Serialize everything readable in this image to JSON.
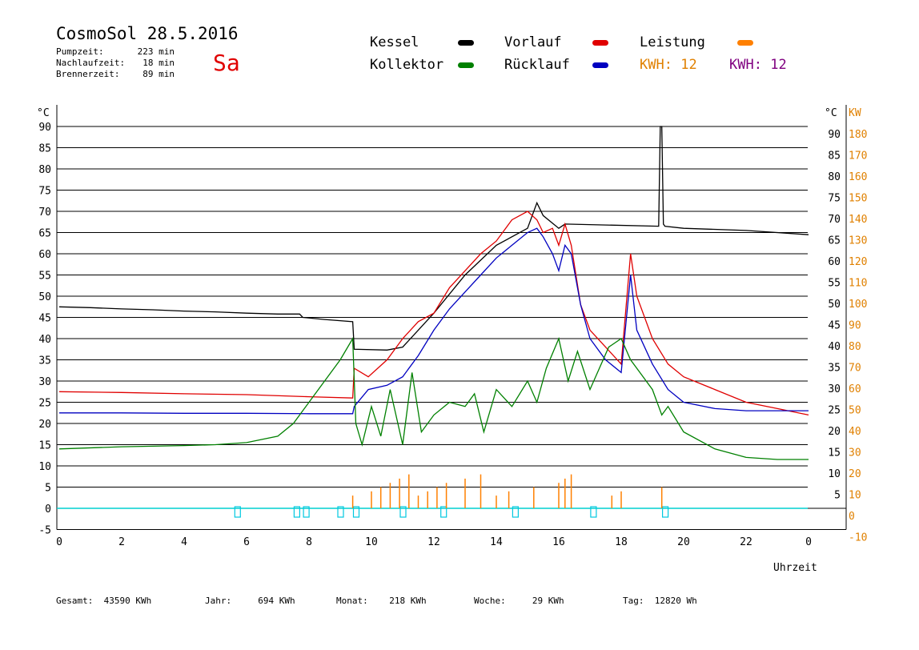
{
  "header": {
    "title": "CosmoSol 28.5.2016",
    "day": "Sa",
    "info": [
      {
        "label": "Pumpzeit:",
        "value": "223 min"
      },
      {
        "label": "Nachlaufzeit:",
        "value": "18 min"
      },
      {
        "label": "Brennerzeit:",
        "value": "89 min"
      }
    ]
  },
  "legend": {
    "kessel": {
      "label": "Kessel",
      "color": "#000000"
    },
    "vorlauf": {
      "label": "Vorlauf",
      "color": "#e00000"
    },
    "leistung": {
      "label": "Leistung",
      "color": "#ff8000"
    },
    "kollektor": {
      "label": "Kollektor",
      "color": "#008000"
    },
    "ruecklauf": {
      "label": "Rücklauf",
      "color": "#0000c0"
    },
    "kwh_orange": {
      "label": "KWH:",
      "value": "12",
      "color": "#e08000"
    },
    "kwh_purple": {
      "label": "KWH:",
      "value": "12",
      "color": "#800080"
    }
  },
  "footer": {
    "gesamt": {
      "label": "Gesamt:",
      "value": "43590 KWh"
    },
    "jahr": {
      "label": "Jahr:",
      "value": "694 KWh"
    },
    "monat": {
      "label": "Monat:",
      "value": "218 KWh"
    },
    "woche": {
      "label": "Woche:",
      "value": "29 KWh"
    },
    "tag": {
      "label": "Tag:",
      "value": "12820 Wh"
    }
  },
  "chart_data": {
    "type": "line",
    "xlabel": "Uhrzeit",
    "ylabel_left": "°C",
    "ylabel_right_1": "°C",
    "ylabel_right_2": "KW",
    "x_ticks": [
      "0",
      "2",
      "4",
      "6",
      "8",
      "10",
      "12",
      "14",
      "16",
      "18",
      "20",
      "22",
      "0"
    ],
    "xlim": [
      0,
      24
    ],
    "y_ticks_left": [
      "-5",
      "0",
      "5",
      "10",
      "15",
      "20",
      "25",
      "30",
      "35",
      "40",
      "45",
      "50",
      "55",
      "60",
      "65",
      "70",
      "75",
      "80",
      "85",
      "90"
    ],
    "y_ticks_right_1": [
      "5",
      "10",
      "15",
      "20",
      "25",
      "30",
      "35",
      "40",
      "45",
      "50",
      "55",
      "60",
      "65",
      "70",
      "75",
      "80",
      "85",
      "90"
    ],
    "y_ticks_right_2": [
      "-10",
      "0",
      "10",
      "20",
      "30",
      "40",
      "50",
      "60",
      "70",
      "80",
      "90",
      "100",
      "110",
      "120",
      "130",
      "140",
      "150",
      "160",
      "170",
      "180"
    ],
    "ylim": [
      -5,
      92
    ],
    "grid": true,
    "series": [
      {
        "name": "Kessel",
        "color": "#000000",
        "x": [
          0,
          1,
          2,
          3,
          4,
          5,
          6,
          7,
          7.7,
          7.8,
          8.5,
          9.4,
          9.45,
          10.5,
          11,
          12,
          13,
          14,
          15,
          15.3,
          15.5,
          16,
          16.2,
          19.2,
          19.25,
          19.3,
          19.35,
          19.4,
          20,
          22,
          24
        ],
        "y": [
          47.5,
          47.3,
          47,
          46.8,
          46.5,
          46.3,
          46,
          45.8,
          45.8,
          45,
          44.5,
          44,
          37.5,
          37.3,
          38,
          46,
          55,
          62,
          66,
          72,
          69,
          66,
          67,
          66.5,
          90,
          90,
          67,
          66.5,
          66,
          65.5,
          64.5
        ]
      },
      {
        "name": "Vorlauf",
        "color": "#e00000",
        "x": [
          0,
          2,
          4,
          6,
          8,
          9.4,
          9.45,
          9.9,
          10.5,
          11,
          11.5,
          12,
          12.5,
          13,
          13.5,
          14,
          14.5,
          15,
          15.3,
          15.5,
          15.8,
          16,
          16.2,
          16.4,
          16.7,
          17,
          17.5,
          18,
          18.3,
          18.5,
          19,
          19.5,
          20,
          21,
          22,
          23,
          24
        ],
        "y": [
          27.5,
          27.3,
          27,
          26.8,
          26.3,
          26,
          33,
          31,
          35,
          40,
          44,
          46,
          52,
          56,
          60,
          63,
          68,
          70,
          68,
          65,
          66,
          62,
          67,
          62,
          48,
          42,
          38,
          34,
          60,
          50,
          40,
          34,
          31,
          28,
          25,
          23.5,
          22
        ]
      },
      {
        "name": "Rücklauf",
        "color": "#0000c0",
        "x": [
          0,
          2,
          4,
          6,
          8,
          9.4,
          9.45,
          9.9,
          10.5,
          11,
          11.5,
          12,
          12.5,
          13,
          13.5,
          14,
          14.5,
          15,
          15.3,
          15.5,
          15.8,
          16,
          16.2,
          16.4,
          16.7,
          17,
          17.5,
          18,
          18.3,
          18.5,
          19,
          19.5,
          20,
          21,
          22,
          23,
          24
        ],
        "y": [
          22.5,
          22.5,
          22.4,
          22.4,
          22.3,
          22.3,
          24,
          28,
          29,
          31,
          36,
          42,
          47,
          51,
          55,
          59,
          62,
          65,
          66,
          64,
          60,
          56,
          62,
          60,
          48,
          40,
          35,
          32,
          55,
          42,
          34,
          28,
          25,
          23.5,
          23,
          23,
          23
        ]
      },
      {
        "name": "Kollektor",
        "color": "#008000",
        "x": [
          0,
          2,
          4,
          5,
          6,
          7,
          7.5,
          8,
          8.5,
          9,
          9.4,
          9.5,
          9.7,
          10,
          10.3,
          10.6,
          11,
          11.3,
          11.6,
          12,
          12.5,
          13,
          13.3,
          13.6,
          14,
          14.5,
          15,
          15.3,
          15.6,
          16,
          16.3,
          16.6,
          17,
          17.3,
          17.6,
          18,
          18.3,
          18.6,
          19,
          19.3,
          19.5,
          20,
          21,
          22,
          23,
          24
        ],
        "y": [
          14,
          14.5,
          14.8,
          15,
          15.5,
          17,
          20,
          25,
          30,
          35,
          40,
          20,
          15,
          24,
          17,
          28,
          15,
          32,
          18,
          22,
          25,
          24,
          27,
          18,
          28,
          24,
          30,
          25,
          33,
          40,
          30,
          37,
          28,
          33,
          38,
          40,
          35,
          32,
          28,
          22,
          24,
          18,
          14,
          12,
          11.5,
          11.5
        ]
      }
    ],
    "leistung_marks": [
      9.4,
      10,
      10.3,
      10.6,
      10.9,
      11.2,
      11.5,
      11.8,
      12.1,
      12.4,
      13,
      13.5,
      14,
      14.4,
      15.2,
      16,
      16.2,
      16.4,
      17.7,
      18,
      19.3
    ],
    "pump_marks": [
      5.7,
      7.6,
      7.9,
      9.0,
      9.5,
      11,
      12.3,
      14.6,
      17.1,
      19.4
    ]
  }
}
